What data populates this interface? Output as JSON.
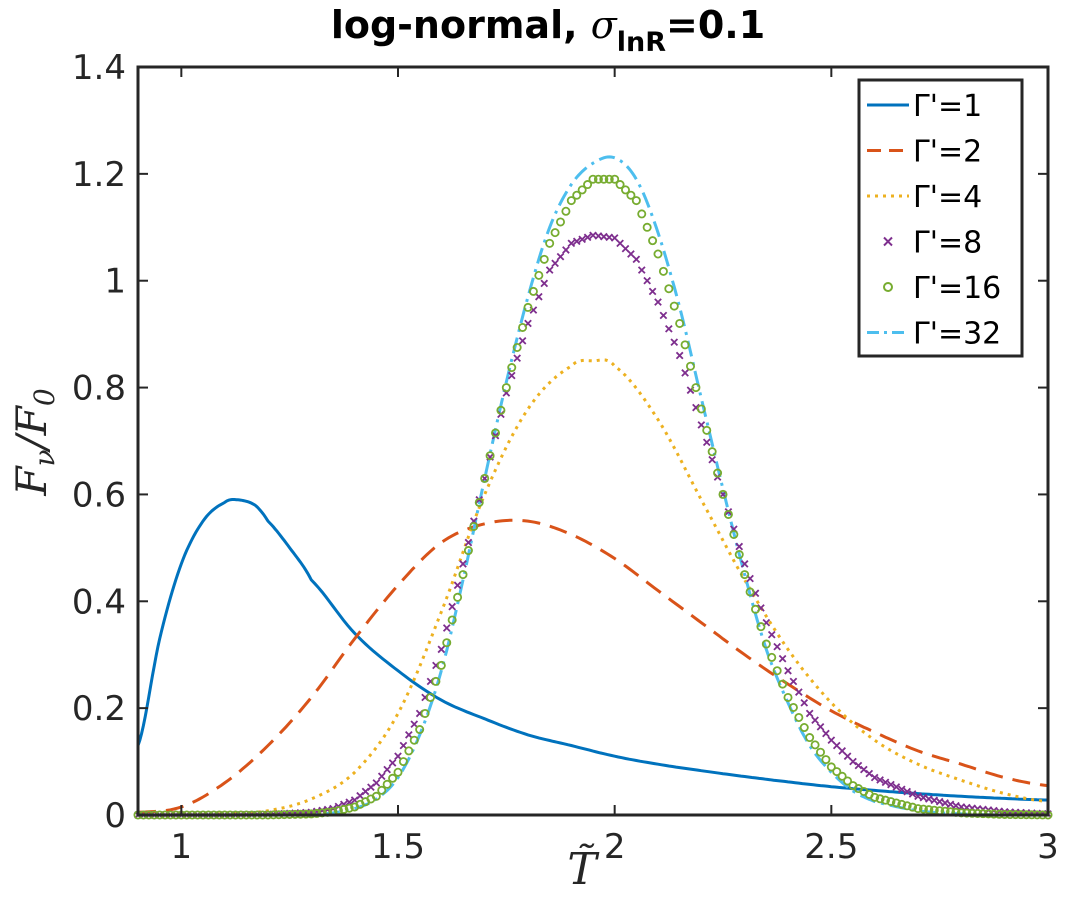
{
  "chart_data": {
    "type": "line",
    "title_main": "log-normal, ",
    "title_sigma": "σ",
    "title_sub": "lnR",
    "title_tail": "=0.1",
    "xlabel": "T̃",
    "ylabel_main": "F",
    "ylabel_sub1": "ν",
    "ylabel_slash": "/F",
    "ylabel_sub2": "0",
    "xlim": [
      0.9,
      3
    ],
    "ylim": [
      0,
      1.4
    ],
    "xticks": [
      1,
      1.5,
      2,
      2.5,
      3
    ],
    "xtick_labels": [
      "1",
      "1.5",
      "2",
      "2.5",
      "3"
    ],
    "yticks": [
      0,
      0.2,
      0.4,
      0.6,
      0.8,
      1,
      1.2,
      1.4
    ],
    "ytick_labels": [
      "0",
      "0.2",
      "0.4",
      "0.6",
      "0.8",
      "1",
      "1.2",
      "1.4"
    ],
    "legend_position": "top-right",
    "series": [
      {
        "name": "Γ'=1",
        "color": "#0072BD",
        "style": "solid",
        "x": [
          0.9,
          0.95,
          1.0,
          1.05,
          1.1,
          1.13,
          1.17,
          1.2,
          1.25,
          1.3,
          1.4,
          1.5,
          1.6,
          1.7,
          1.8,
          1.9,
          2.0,
          2.1,
          2.2,
          2.3,
          2.4,
          2.5,
          2.6,
          2.7,
          2.8,
          2.9,
          3.0
        ],
        "y": [
          0.13,
          0.33,
          0.47,
          0.55,
          0.585,
          0.59,
          0.58,
          0.55,
          0.5,
          0.44,
          0.34,
          0.27,
          0.215,
          0.18,
          0.15,
          0.13,
          0.11,
          0.095,
          0.083,
          0.072,
          0.062,
          0.053,
          0.046,
          0.04,
          0.035,
          0.031,
          0.028
        ]
      },
      {
        "name": "Γ'=2",
        "color": "#D95319",
        "style": "dashed",
        "x": [
          0.9,
          1.0,
          1.1,
          1.2,
          1.3,
          1.4,
          1.5,
          1.6,
          1.7,
          1.8,
          1.9,
          2.0,
          2.1,
          2.2,
          2.3,
          2.4,
          2.5,
          2.6,
          2.7,
          2.8,
          2.9,
          3.0
        ],
        "y": [
          0.005,
          0.015,
          0.06,
          0.13,
          0.22,
          0.33,
          0.43,
          0.51,
          0.545,
          0.55,
          0.525,
          0.48,
          0.42,
          0.36,
          0.3,
          0.245,
          0.195,
          0.155,
          0.12,
          0.095,
          0.07,
          0.055
        ]
      },
      {
        "name": "Γ'=4",
        "color": "#EDB120",
        "style": "dotted",
        "x": [
          0.9,
          1.0,
          1.1,
          1.2,
          1.3,
          1.4,
          1.5,
          1.6,
          1.7,
          1.8,
          1.9,
          1.95,
          2.0,
          2.1,
          2.2,
          2.3,
          2.4,
          2.5,
          2.6,
          2.7,
          2.8,
          2.9,
          3.0
        ],
        "y": [
          0.0,
          0.0,
          0.002,
          0.008,
          0.03,
          0.08,
          0.19,
          0.38,
          0.6,
          0.76,
          0.84,
          0.85,
          0.84,
          0.74,
          0.59,
          0.44,
          0.31,
          0.21,
          0.14,
          0.095,
          0.065,
          0.04,
          0.025
        ]
      },
      {
        "name": "Γ'=8",
        "color": "#7E2F8E",
        "style": "cross",
        "x": [
          0.9,
          1.0,
          1.1,
          1.2,
          1.3,
          1.35,
          1.4,
          1.45,
          1.5,
          1.55,
          1.6,
          1.65,
          1.7,
          1.75,
          1.8,
          1.85,
          1.9,
          1.95,
          2.0,
          2.05,
          2.1,
          2.15,
          2.2,
          2.25,
          2.3,
          2.35,
          2.4,
          2.45,
          2.5,
          2.55,
          2.6,
          2.7,
          2.8,
          2.9,
          3.0
        ],
        "y": [
          0.0,
          0.0,
          0.0,
          0.001,
          0.005,
          0.012,
          0.028,
          0.06,
          0.11,
          0.19,
          0.31,
          0.47,
          0.63,
          0.79,
          0.92,
          1.02,
          1.07,
          1.085,
          1.08,
          1.04,
          0.96,
          0.86,
          0.73,
          0.6,
          0.47,
          0.36,
          0.27,
          0.19,
          0.14,
          0.1,
          0.07,
          0.035,
          0.015,
          0.006,
          0.002
        ]
      },
      {
        "name": "Γ'=16",
        "color": "#77AC30",
        "style": "circle",
        "x": [
          0.9,
          1.0,
          1.1,
          1.2,
          1.3,
          1.35,
          1.4,
          1.45,
          1.5,
          1.55,
          1.6,
          1.65,
          1.7,
          1.75,
          1.8,
          1.85,
          1.9,
          1.95,
          2.0,
          2.05,
          2.1,
          2.15,
          2.2,
          2.25,
          2.3,
          2.35,
          2.4,
          2.45,
          2.5,
          2.55,
          2.6,
          2.7,
          2.8,
          2.9,
          3.0
        ],
        "y": [
          0.0,
          0.0,
          0.0,
          0.0,
          0.002,
          0.006,
          0.015,
          0.035,
          0.08,
          0.16,
          0.28,
          0.45,
          0.63,
          0.8,
          0.95,
          1.07,
          1.15,
          1.19,
          1.19,
          1.15,
          1.05,
          0.92,
          0.76,
          0.6,
          0.45,
          0.32,
          0.22,
          0.145,
          0.09,
          0.055,
          0.033,
          0.012,
          0.004,
          0.001,
          0.0
        ]
      },
      {
        "name": "Γ'=32",
        "color": "#4DBEEE",
        "style": "dashdot",
        "x": [
          0.9,
          1.0,
          1.1,
          1.2,
          1.3,
          1.35,
          1.4,
          1.45,
          1.5,
          1.55,
          1.6,
          1.65,
          1.7,
          1.75,
          1.8,
          1.85,
          1.9,
          1.95,
          2.0,
          2.05,
          2.1,
          2.15,
          2.2,
          2.25,
          2.3,
          2.35,
          2.4,
          2.45,
          2.5,
          2.55,
          2.6,
          2.7,
          2.8,
          2.9,
          3.0
        ],
        "y": [
          0.0,
          0.0,
          0.0,
          0.0,
          0.001,
          0.004,
          0.012,
          0.03,
          0.07,
          0.15,
          0.27,
          0.44,
          0.63,
          0.81,
          0.97,
          1.1,
          1.18,
          1.22,
          1.23,
          1.19,
          1.09,
          0.95,
          0.78,
          0.61,
          0.45,
          0.31,
          0.21,
          0.13,
          0.08,
          0.045,
          0.025,
          0.008,
          0.002,
          0.0,
          0.0
        ]
      }
    ]
  }
}
